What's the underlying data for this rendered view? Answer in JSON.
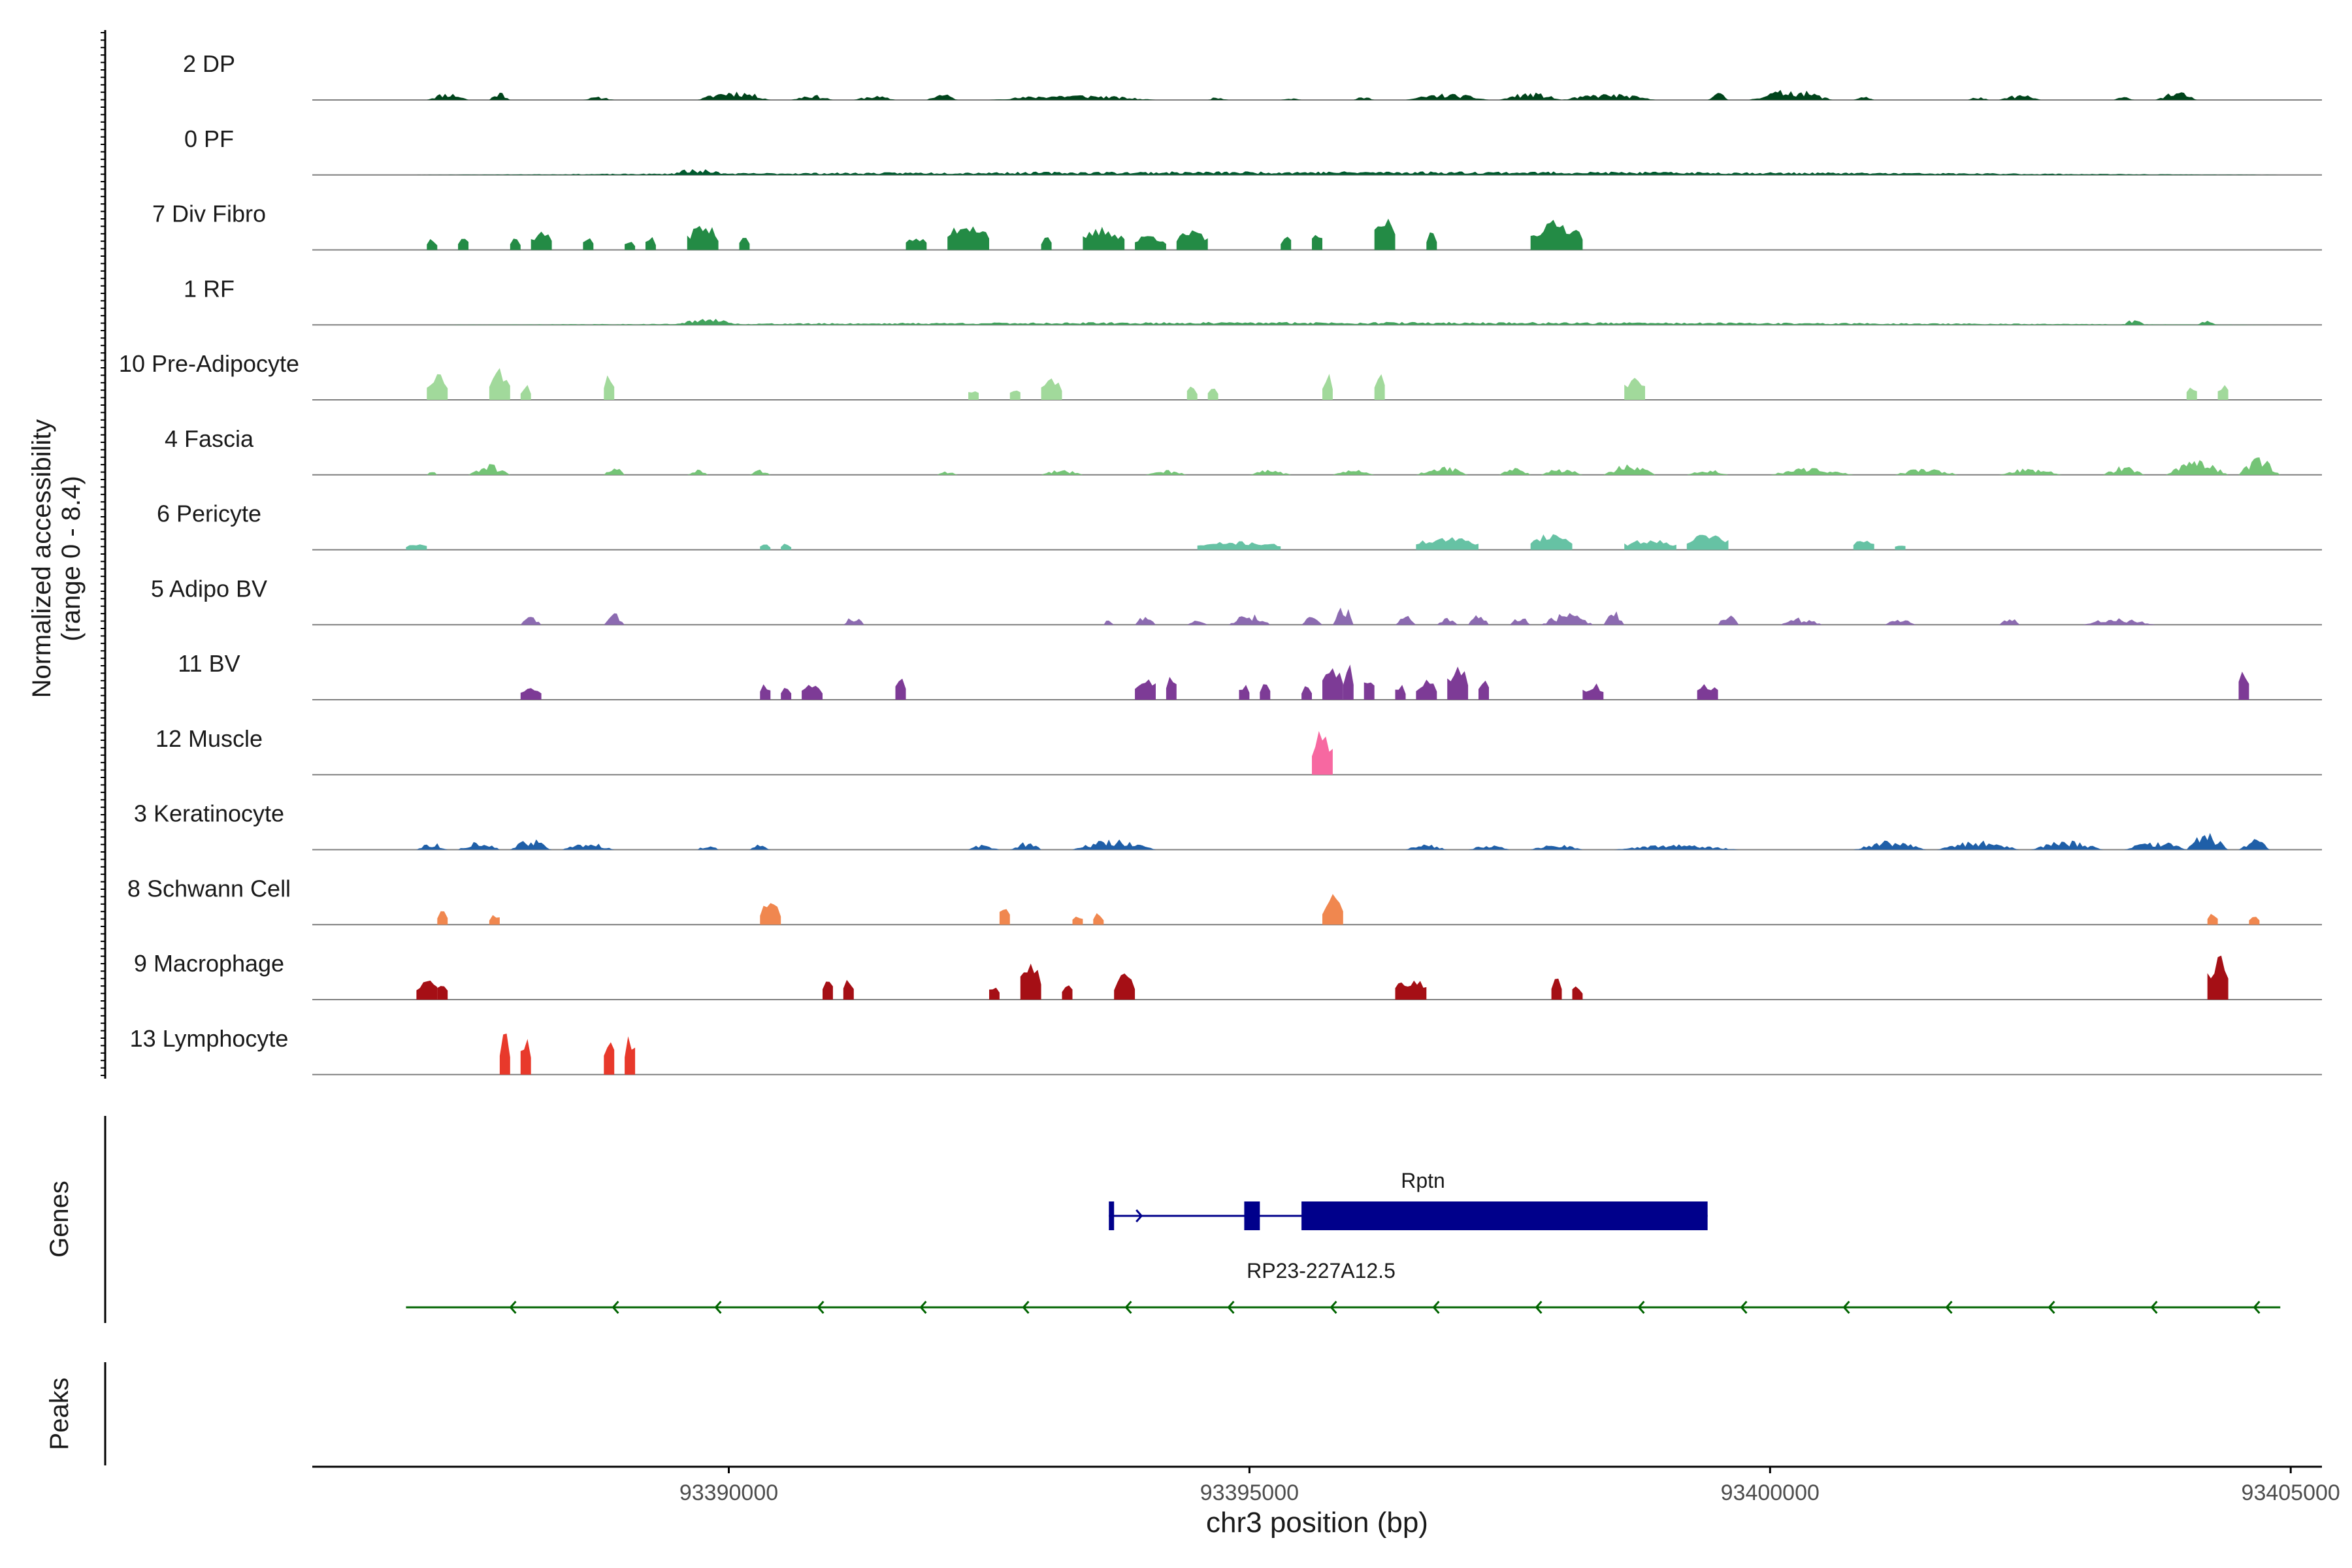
{
  "chart_data": {
    "type": "coverage",
    "ylabel_line1": "Normalized accessibility",
    "ylabel_line2": "(range 0 - 8.4)",
    "y_range": [
      0,
      8.4
    ],
    "xlabel": "chr3 position (bp)",
    "x_range": [
      93386000,
      93405300
    ],
    "x_ticks": [
      93390000,
      93395000,
      93400000,
      93405000
    ],
    "x_tick_labels": [
      "93390000",
      "93395000",
      "93400000",
      "93405000"
    ],
    "section_labels": {
      "genes": "Genes",
      "peaks": "Peaks"
    },
    "tracks": [
      {
        "name": "2 DP",
        "color": "#00441b",
        "seed": 11,
        "profile": "smooth",
        "scale": 0.18,
        "regions": [
          [
            93387100,
            93387500,
            0.7
          ],
          [
            93387700,
            93387900,
            0.8
          ],
          [
            93388600,
            93388900,
            0.3
          ],
          [
            93389700,
            93390400,
            0.9
          ],
          [
            93390600,
            93391000,
            0.5
          ],
          [
            93391200,
            93391600,
            0.4
          ],
          [
            93391900,
            93392200,
            0.6
          ],
          [
            93392500,
            93394100,
            0.5
          ],
          [
            93394600,
            93394800,
            0.3
          ],
          [
            93395300,
            93395500,
            0.2
          ],
          [
            93396000,
            93396200,
            0.3
          ],
          [
            93396500,
            93397300,
            0.6
          ],
          [
            93397400,
            93398000,
            0.7
          ],
          [
            93398000,
            93398900,
            0.6
          ],
          [
            93399400,
            93399600,
            0.7
          ],
          [
            93399800,
            93400600,
            1.0
          ],
          [
            93400800,
            93401000,
            0.4
          ],
          [
            93401900,
            93402100,
            0.3
          ],
          [
            93402200,
            93402600,
            0.5
          ],
          [
            93403300,
            93403500,
            0.3
          ],
          [
            93403700,
            93404100,
            0.8
          ]
        ]
      },
      {
        "name": "0 PF",
        "color": "#005a2e",
        "seed": 23,
        "profile": "smooth",
        "scale": 0.12,
        "regions": [
          [
            93386900,
            93405000,
            0.5
          ],
          [
            93389400,
            93390000,
            0.9
          ]
        ]
      },
      {
        "name": "7 Div Fibro",
        "color": "#238b45",
        "seed": 37,
        "profile": "blocky",
        "scale": 0.55,
        "regions": [
          [
            93387100,
            93387200,
            0.4
          ],
          [
            93387400,
            93387500,
            0.5
          ],
          [
            93387900,
            93388000,
            0.4
          ],
          [
            93388100,
            93388300,
            0.6
          ],
          [
            93388600,
            93388700,
            0.5
          ],
          [
            93389000,
            93389100,
            0.3
          ],
          [
            93389200,
            93389300,
            0.4
          ],
          [
            93389600,
            93389900,
            0.8
          ],
          [
            93390100,
            93390200,
            0.5
          ],
          [
            93391700,
            93391900,
            0.4
          ],
          [
            93392100,
            93392500,
            0.9
          ],
          [
            93393000,
            93393100,
            0.4
          ],
          [
            93393400,
            93393800,
            0.7
          ],
          [
            93393900,
            93394200,
            0.5
          ],
          [
            93394300,
            93394600,
            0.6
          ],
          [
            93395300,
            93395400,
            0.5
          ],
          [
            93395600,
            93395700,
            0.6
          ],
          [
            93396200,
            93396400,
            1.0
          ],
          [
            93396700,
            93396800,
            0.6
          ],
          [
            93397700,
            93398200,
            0.9
          ]
        ]
      },
      {
        "name": "1 RF",
        "color": "#41a35c",
        "seed": 41,
        "profile": "smooth",
        "scale": 0.12,
        "regions": [
          [
            93387000,
            93405000,
            0.4
          ],
          [
            93389500,
            93390100,
            1.0
          ],
          [
            93403400,
            93403600,
            0.9
          ],
          [
            93404100,
            93404300,
            0.8
          ]
        ]
      },
      {
        "name": "10 Pre-Adipocyte",
        "color": "#a1d99b",
        "seed": 53,
        "profile": "blocky",
        "scale": 0.55,
        "regions": [
          [
            93387100,
            93387300,
            0.9
          ],
          [
            93387700,
            93387900,
            1.0
          ],
          [
            93388000,
            93388100,
            0.5
          ],
          [
            93388800,
            93388900,
            0.9
          ],
          [
            93392300,
            93392400,
            0.4
          ],
          [
            93392700,
            93392800,
            0.4
          ],
          [
            93393000,
            93393200,
            0.8
          ],
          [
            93394400,
            93394500,
            0.5
          ],
          [
            93394600,
            93394700,
            0.5
          ],
          [
            93395700,
            93395800,
            0.9
          ],
          [
            93396200,
            93396300,
            0.9
          ],
          [
            93398600,
            93398800,
            0.8
          ],
          [
            93404000,
            93404100,
            0.5
          ],
          [
            93404300,
            93404400,
            0.5
          ]
        ]
      },
      {
        "name": "4 Fascia",
        "color": "#74c476",
        "seed": 61,
        "profile": "smooth",
        "scale": 0.3,
        "regions": [
          [
            93387100,
            93387200,
            0.2
          ],
          [
            93387500,
            93387900,
            0.6
          ],
          [
            93388800,
            93389000,
            0.5
          ],
          [
            93389600,
            93389800,
            0.3
          ],
          [
            93390200,
            93390400,
            0.3
          ],
          [
            93392000,
            93392200,
            0.2
          ],
          [
            93393000,
            93393400,
            0.3
          ],
          [
            93394000,
            93394400,
            0.3
          ],
          [
            93395000,
            93395400,
            0.3
          ],
          [
            93395800,
            93396200,
            0.3
          ],
          [
            93396600,
            93397100,
            0.5
          ],
          [
            93397400,
            93397700,
            0.4
          ],
          [
            93397800,
            93398200,
            0.4
          ],
          [
            93398400,
            93398900,
            0.6
          ],
          [
            93399200,
            93399600,
            0.3
          ],
          [
            93400000,
            93400800,
            0.4
          ],
          [
            93401200,
            93401800,
            0.4
          ],
          [
            93402200,
            93402800,
            0.4
          ],
          [
            93403200,
            93403600,
            0.5
          ],
          [
            93403800,
            93404400,
            0.8
          ],
          [
            93404500,
            93404900,
            1.0
          ]
        ]
      },
      {
        "name": "6 Pericyte",
        "color": "#66c2a4",
        "seed": 71,
        "profile": "blocky",
        "scale": 0.35,
        "regions": [
          [
            93386900,
            93387100,
            0.3
          ],
          [
            93390300,
            93390400,
            0.3
          ],
          [
            93390500,
            93390600,
            0.3
          ],
          [
            93394500,
            93395300,
            0.4
          ],
          [
            93396600,
            93397200,
            0.6
          ],
          [
            93397700,
            93398100,
            0.8
          ],
          [
            93398600,
            93399100,
            0.5
          ],
          [
            93399200,
            93399600,
            0.8
          ],
          [
            93400800,
            93401000,
            0.5
          ],
          [
            93401200,
            93401300,
            0.3
          ]
        ]
      },
      {
        "name": "5 Adipo BV",
        "color": "#8c6bb1",
        "seed": 83,
        "profile": "smooth",
        "scale": 0.4,
        "regions": [
          [
            93388000,
            93388200,
            0.4
          ],
          [
            93388800,
            93389000,
            0.5
          ],
          [
            93391100,
            93391300,
            0.4
          ],
          [
            93393600,
            93393700,
            0.3
          ],
          [
            93393900,
            93394100,
            0.4
          ],
          [
            93394400,
            93394600,
            0.4
          ],
          [
            93394800,
            93395200,
            0.5
          ],
          [
            93395500,
            93395700,
            0.4
          ],
          [
            93395800,
            93396000,
            1.0
          ],
          [
            93396400,
            93396600,
            0.4
          ],
          [
            93396800,
            93397000,
            0.3
          ],
          [
            93397100,
            93397300,
            0.5
          ],
          [
            93397500,
            93397700,
            0.4
          ],
          [
            93397800,
            93398300,
            0.5
          ],
          [
            93398400,
            93398600,
            0.7
          ],
          [
            93399500,
            93399700,
            0.5
          ],
          [
            93400100,
            93400500,
            0.3
          ],
          [
            93401100,
            93401400,
            0.3
          ],
          [
            93402200,
            93402400,
            0.4
          ],
          [
            93403000,
            93403700,
            0.3
          ]
        ]
      },
      {
        "name": "11 BV",
        "color": "#7d3b96",
        "seed": 97,
        "profile": "blocky",
        "scale": 0.7,
        "regions": [
          [
            93388000,
            93388200,
            0.4
          ],
          [
            93390300,
            93390400,
            0.4
          ],
          [
            93390500,
            93390600,
            0.4
          ],
          [
            93390700,
            93390900,
            0.4
          ],
          [
            93391600,
            93391700,
            0.7
          ],
          [
            93393900,
            93394100,
            0.7
          ],
          [
            93394200,
            93394300,
            0.7
          ],
          [
            93394900,
            93395000,
            0.4
          ],
          [
            93395100,
            93395200,
            0.4
          ],
          [
            93395500,
            93395600,
            0.4
          ],
          [
            93395700,
            93395900,
            0.8
          ],
          [
            93395900,
            93396000,
            1.0
          ],
          [
            93396100,
            93396200,
            0.7
          ],
          [
            93396400,
            93396500,
            0.4
          ],
          [
            93396600,
            93396800,
            0.5
          ],
          [
            93396900,
            93397100,
            0.9
          ],
          [
            93397200,
            93397300,
            0.5
          ],
          [
            93398200,
            93398400,
            0.4
          ],
          [
            93399300,
            93399500,
            0.4
          ],
          [
            93404500,
            93404600,
            0.7
          ]
        ]
      },
      {
        "name": "12 Muscle",
        "color": "#f768a1",
        "seed": 101,
        "profile": "blocky",
        "scale": 0.75,
        "regions": [
          [
            93395600,
            93395800,
            1.0
          ]
        ]
      },
      {
        "name": "3 Keratinocyte",
        "color": "#1f5fa8",
        "seed": 113,
        "profile": "smooth",
        "scale": 0.3,
        "regions": [
          [
            93387000,
            93387300,
            0.4
          ],
          [
            93387400,
            93387800,
            0.5
          ],
          [
            93387900,
            93388300,
            0.6
          ],
          [
            93388400,
            93388900,
            0.4
          ],
          [
            93389700,
            93389900,
            0.3
          ],
          [
            93390200,
            93390400,
            0.3
          ],
          [
            93392300,
            93392600,
            0.3
          ],
          [
            93392700,
            93393000,
            0.5
          ],
          [
            93393300,
            93394100,
            0.6
          ],
          [
            93396500,
            93396900,
            0.3
          ],
          [
            93397100,
            93397500,
            0.3
          ],
          [
            93397700,
            93398200,
            0.3
          ],
          [
            93398500,
            93399700,
            0.3
          ],
          [
            93400800,
            93401500,
            0.5
          ],
          [
            93401600,
            93402400,
            0.5
          ],
          [
            93402500,
            93403200,
            0.5
          ],
          [
            93403400,
            93404000,
            0.5
          ],
          [
            93404000,
            93404400,
            1.0
          ],
          [
            93404500,
            93404800,
            0.7
          ]
        ]
      },
      {
        "name": "8 Schwann Cell",
        "color": "#f0874f",
        "seed": 127,
        "profile": "blocky",
        "scale": 0.5,
        "regions": [
          [
            93387200,
            93387300,
            0.5
          ],
          [
            93387700,
            93387800,
            0.4
          ],
          [
            93390300,
            93390500,
            0.8
          ],
          [
            93392600,
            93392700,
            0.8
          ],
          [
            93393300,
            93393400,
            0.4
          ],
          [
            93393500,
            93393600,
            0.4
          ],
          [
            93395700,
            93395900,
            1.0
          ],
          [
            93404200,
            93404300,
            0.4
          ],
          [
            93404600,
            93404700,
            0.4
          ]
        ]
      },
      {
        "name": "9 Macrophage",
        "color": "#a50f15",
        "seed": 131,
        "profile": "blocky",
        "scale": 0.75,
        "regions": [
          [
            93387000,
            93387200,
            0.5
          ],
          [
            93387200,
            93387300,
            0.5
          ],
          [
            93390900,
            93391000,
            0.5
          ],
          [
            93391100,
            93391200,
            0.5
          ],
          [
            93392500,
            93392600,
            0.4
          ],
          [
            93392800,
            93393000,
            1.0
          ],
          [
            93393200,
            93393300,
            0.4
          ],
          [
            93393700,
            93393900,
            0.6
          ],
          [
            93396400,
            93396700,
            0.5
          ],
          [
            93397900,
            93398000,
            0.5
          ],
          [
            93398100,
            93398200,
            0.4
          ],
          [
            93404200,
            93404400,
            1.0
          ]
        ]
      },
      {
        "name": "13 Lymphocyte",
        "color": "#e8392b",
        "seed": 149,
        "profile": "blocky",
        "scale": 0.75,
        "regions": [
          [
            93387800,
            93387900,
            1.0
          ],
          [
            93388000,
            93388100,
            1.0
          ],
          [
            93388800,
            93388900,
            1.0
          ],
          [
            93389000,
            93389100,
            1.0
          ]
        ]
      }
    ],
    "genes": [
      {
        "name": "Rptn",
        "strand": "+",
        "color": "#00008b",
        "start": 93393650,
        "end": 93399400,
        "exons": [
          [
            93393650,
            93393700
          ],
          [
            93394950,
            93395100
          ],
          [
            93395500,
            93399400
          ]
        ]
      },
      {
        "name": "RP23-227A12.5",
        "strand": "-",
        "color": "#006400",
        "start": 93386900,
        "end": 93404900,
        "exons": []
      }
    ],
    "peaks": []
  }
}
